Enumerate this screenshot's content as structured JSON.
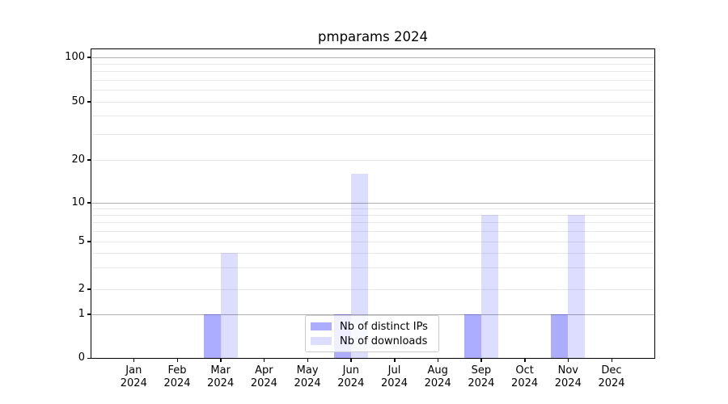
{
  "chart_data": {
    "type": "bar",
    "title": "pmparams 2024",
    "categories": [
      "Jan 2024",
      "Feb 2024",
      "Mar 2024",
      "Apr 2024",
      "May 2024",
      "Jun 2024",
      "Jul 2024",
      "Aug 2024",
      "Sep 2024",
      "Oct 2024",
      "Nov 2024",
      "Dec 2024"
    ],
    "series": [
      {
        "name": "Nb of distinct IPs",
        "color": "rgba(0,0,255,0.32)",
        "color_hex_on_white": "#a9a9f6",
        "values": [
          0,
          0,
          1,
          0,
          0,
          1,
          0,
          0,
          1,
          0,
          1,
          0
        ]
      },
      {
        "name": "Nb of downloads",
        "color": "rgba(0,0,255,0.135)",
        "color_hex_on_white": "#dcdcfa",
        "values": [
          0,
          0,
          4,
          0,
          0,
          16,
          0,
          0,
          8,
          0,
          8,
          0
        ]
      }
    ],
    "xlabel": "",
    "ylabel": "",
    "yscale": "symlog",
    "ylim": [
      0,
      115
    ],
    "y_tick_values": [
      0,
      1,
      2,
      5,
      10,
      20,
      50,
      100
    ],
    "y_tick_labels": [
      "0",
      "1",
      "2",
      "5",
      "10",
      "20",
      "50",
      "100"
    ],
    "y_minor_gridline_values": [
      2,
      3,
      4,
      5,
      6,
      7,
      8,
      9,
      20,
      30,
      40,
      50,
      60,
      70,
      80,
      90
    ],
    "y_major_gridline_values": [
      1,
      10,
      100
    ],
    "grid": true,
    "legend_position": "lower center (inside plot)"
  },
  "colors": {
    "background": "#ffffff",
    "spine": "#000000",
    "major_gridline": "#b0b0b0",
    "minor_gridline": "#e8e8e8",
    "legend_border": "#cccccc",
    "text": "#000000"
  }
}
